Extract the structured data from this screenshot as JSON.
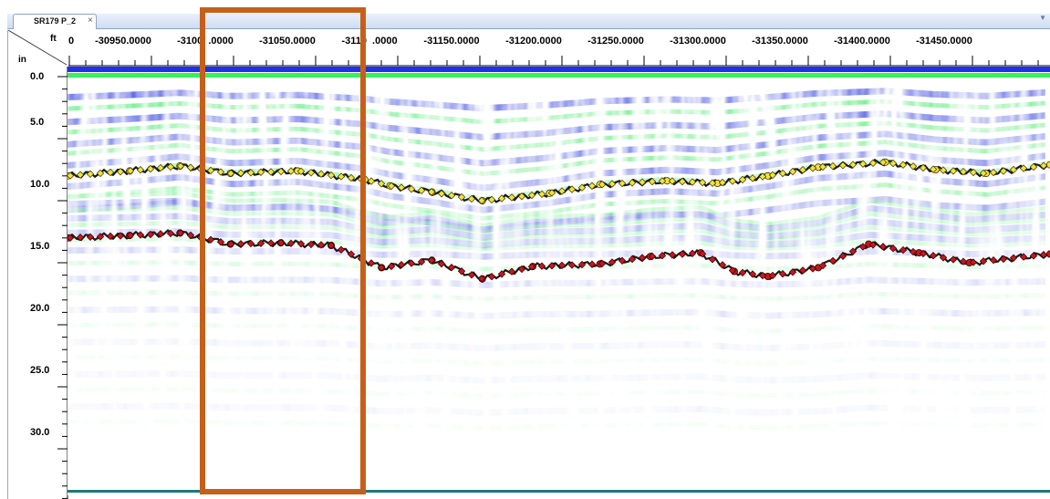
{
  "tab": {
    "title": "SR179 P_2",
    "close_glyph": "×"
  },
  "menu_glyph": "▼",
  "axis": {
    "x_unit": "ft",
    "y_unit": "in",
    "x_ticks": [
      "0",
      "-30950.0000",
      "-3100  .0000",
      "-31050.0000",
      "-3110  .0000",
      "-31150.0000",
      "-31200.0000",
      "-31250.0000",
      "-31300.0000",
      "-31350.0000",
      "-31400.0000",
      "-31450.0000"
    ],
    "y_ticks": [
      "0.0",
      "5.0",
      "10.0",
      "15.0",
      "20.0",
      "25.0",
      "30.0"
    ]
  },
  "colors": {
    "band_positive": "#2f3fe0",
    "band_negative": "#33e85a",
    "pick_upper": "#f2e23a",
    "pick_lower": "#c8161d",
    "roi_box": "#c5601a"
  },
  "chart_data": {
    "type": "scatter",
    "xlabel": "ft",
    "ylabel": "in",
    "xlim": [
      -30913,
      -31498
    ],
    "ylim": [
      0,
      34.5
    ],
    "y_inverted": true,
    "series": [
      {
        "x": [
          -30913,
          -30950,
          -30980,
          -31010,
          -31050,
          -31090,
          -31105,
          -31130,
          -31160,
          -31200,
          -31230,
          -31270,
          -31300,
          -31330,
          -31360,
          -31400,
          -31430,
          -31460,
          -31498
        ],
        "y": [
          8.0,
          7.6,
          7.2,
          7.8,
          7.6,
          8.3,
          8.8,
          9.3,
          10.0,
          9.4,
          8.7,
          8.4,
          8.6,
          8.0,
          7.3,
          6.9,
          7.5,
          7.8,
          7.1
        ]
      },
      {
        "x": [
          -30913,
          -30950,
          -30980,
          -31010,
          -31040,
          -31070,
          -31100,
          -31130,
          -31160,
          -31190,
          -31230,
          -31260,
          -31290,
          -31310,
          -31330,
          -31360,
          -31390,
          -31420,
          -31450,
          -31498
        ],
        "y": [
          13.0,
          12.8,
          12.6,
          13.5,
          13.4,
          13.6,
          15.4,
          14.8,
          16.3,
          15.3,
          15.1,
          14.5,
          14.2,
          15.7,
          16.1,
          15.4,
          13.5,
          14.2,
          15.0,
          14.3
        ]
      }
    ]
  }
}
